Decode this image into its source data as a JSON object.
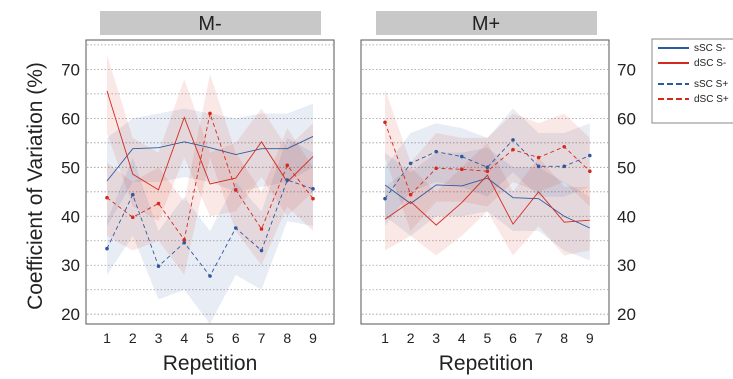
{
  "ylabel": "Coefficient of Variation (%)",
  "legend": [
    {
      "label": "sSC S-",
      "color": "#2c5aa0",
      "dashed": false
    },
    {
      "label": "dSC S-",
      "color": "#d42a1e",
      "dashed": false
    },
    {
      "label": "sSC S+",
      "color": "#2c5aa0",
      "dashed": true
    },
    {
      "label": "dSC S+",
      "color": "#d42a1e",
      "dashed": true
    }
  ],
  "chart_data": [
    {
      "type": "line",
      "title": "M-",
      "xlabel": "Repetition",
      "ylabel": "Coefficient of Variation (%)",
      "x": [
        1,
        2,
        3,
        4,
        5,
        6,
        7,
        8,
        9
      ],
      "xticks": [
        "1",
        "2",
        "3",
        "4",
        "5",
        "6",
        "7",
        "8",
        "9"
      ],
      "yticks": [
        "20",
        "30",
        "40",
        "50",
        "60",
        "70"
      ],
      "ylim": [
        18,
        76
      ],
      "grid": true,
      "series": [
        {
          "name": "sSC S-",
          "color": "#2c5aa0",
          "dashed": false,
          "values": [
            47.2,
            53.8,
            54.0,
            55.2,
            54.0,
            52.6,
            53.8,
            53.8,
            56.3
          ],
          "lower": [
            38,
            47,
            47,
            48,
            47,
            45,
            46,
            47,
            50
          ],
          "upper": [
            56,
            60,
            61,
            62,
            61,
            60,
            61,
            61,
            63
          ]
        },
        {
          "name": "dSC S-",
          "color": "#d42a1e",
          "dashed": false,
          "values": [
            65.6,
            48.6,
            45.4,
            60.2,
            46.6,
            47.8,
            55.2,
            47.0,
            52.2
          ],
          "lower": [
            57,
            42,
            39,
            52,
            40,
            41,
            48,
            40,
            45
          ],
          "upper": [
            73,
            56,
            53,
            68,
            53,
            55,
            62,
            54,
            59
          ]
        },
        {
          "name": "sSC S+",
          "color": "#2c5aa0",
          "dashed": true,
          "values": [
            33.4,
            44.4,
            29.8,
            34.6,
            27.8,
            37.6,
            33.0,
            47.4,
            45.6
          ],
          "lower": [
            28,
            36,
            23,
            25,
            18,
            28,
            25,
            39,
            38
          ],
          "upper": [
            39,
            52,
            37,
            44,
            37,
            47,
            41,
            56,
            53
          ]
        },
        {
          "name": "dSC S+",
          "color": "#d42a1e",
          "dashed": true,
          "values": [
            43.8,
            39.8,
            42.6,
            35.2,
            61.0,
            45.4,
            37.4,
            50.4,
            43.6
          ],
          "lower": [
            36,
            33,
            35,
            28,
            52,
            37,
            30,
            42,
            37
          ],
          "upper": [
            51,
            47,
            50,
            43,
            69,
            53,
            45,
            58,
            50
          ]
        }
      ]
    },
    {
      "type": "line",
      "title": "M+",
      "xlabel": "Repetition",
      "ylabel": "",
      "x": [
        1,
        2,
        3,
        4,
        5,
        6,
        7,
        8,
        9
      ],
      "xticks": [
        "1",
        "2",
        "3",
        "4",
        "5",
        "6",
        "7",
        "8",
        "9"
      ],
      "yticks": [
        "20",
        "30",
        "40",
        "50",
        "60",
        "70"
      ],
      "ylim": [
        18,
        76
      ],
      "grid": true,
      "series": [
        {
          "name": "sSC S-",
          "color": "#2c5aa0",
          "dashed": false,
          "values": [
            46.4,
            42.6,
            46.4,
            46.2,
            47.8,
            43.8,
            43.6,
            40.0,
            37.6
          ],
          "lower": [
            40,
            36,
            40,
            40,
            41,
            37,
            37,
            33,
            31
          ],
          "upper": [
            53,
            49,
            53,
            53,
            54,
            50,
            50,
            47,
            44
          ]
        },
        {
          "name": "dSC S-",
          "color": "#d42a1e",
          "dashed": false,
          "values": [
            39.4,
            43.0,
            38.2,
            42.8,
            48.4,
            38.4,
            45.0,
            38.8,
            39.2
          ],
          "lower": [
            33,
            36,
            32,
            36,
            41,
            32,
            38,
            32,
            33
          ],
          "upper": [
            46,
            50,
            45,
            50,
            55,
            45,
            52,
            46,
            46
          ]
        },
        {
          "name": "sSC S+",
          "color": "#2c5aa0",
          "dashed": true,
          "values": [
            43.6,
            50.8,
            53.2,
            52.2,
            50.0,
            55.6,
            50.2,
            50.2,
            52.4
          ],
          "lower": [
            38,
            45,
            47,
            46,
            44,
            49,
            44,
            44,
            46
          ],
          "upper": [
            50,
            57,
            59,
            58,
            56,
            62,
            57,
            57,
            59
          ]
        },
        {
          "name": "dSC S+",
          "color": "#d42a1e",
          "dashed": true,
          "values": [
            59.2,
            44.4,
            49.8,
            49.6,
            49.2,
            53.6,
            52.0,
            54.2,
            49.2
          ],
          "lower": [
            52,
            37,
            43,
            43,
            42,
            47,
            45,
            47,
            42
          ],
          "upper": [
            66,
            51,
            57,
            56,
            56,
            61,
            59,
            61,
            56
          ]
        }
      ]
    }
  ]
}
